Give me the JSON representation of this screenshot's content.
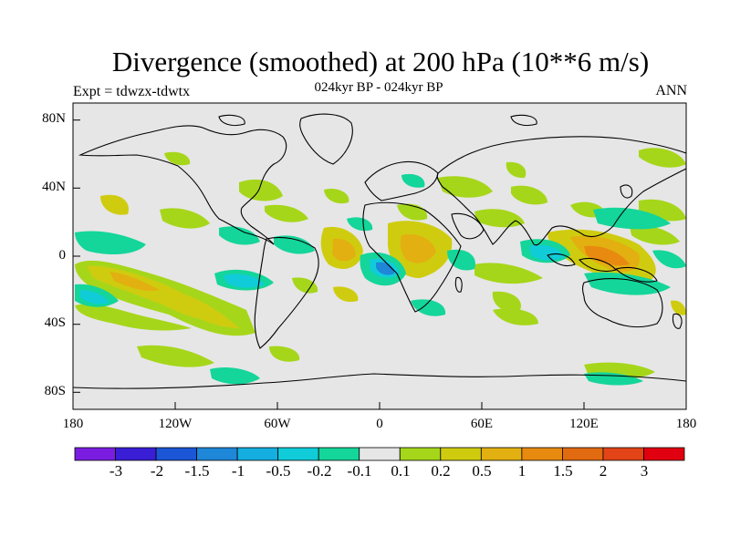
{
  "title": "Divergence (smoothed) at 200 hPa (10**6 m/s)",
  "subtitle": "024kyr BP - 024kyr BP",
  "left_label": "Expt = tdwzx-tdwtx",
  "right_label": "ANN",
  "map": {
    "background_color": "#e6e6e6",
    "lat_labels": [
      "80N",
      "40N",
      "0",
      "40S",
      "80S"
    ],
    "lon_labels": [
      "180",
      "120W",
      "60W",
      "0",
      "60E",
      "120E",
      "180"
    ],
    "projection": "cylindrical equidistant",
    "lon_range": [
      -180,
      180
    ],
    "lat_range": [
      -90,
      90
    ]
  },
  "colorbar": {
    "labels": [
      "-3",
      "-2",
      "-1.5",
      "-1",
      "-0.5",
      "-0.2",
      "-0.1",
      "0.1",
      "0.2",
      "0.5",
      "1",
      "1.5",
      "2",
      "3"
    ],
    "colors": [
      "#7b1de0",
      "#3a1ed6",
      "#1a56d6",
      "#1e87d8",
      "#14aee0",
      "#10ccd8",
      "#14d59a",
      "#e6e6e6",
      "#a6d61a",
      "#cfcc10",
      "#e2b010",
      "#e88a10",
      "#e26a10",
      "#e24418",
      "#e00010"
    ]
  }
}
